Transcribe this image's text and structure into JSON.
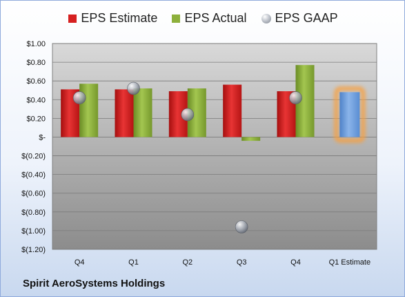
{
  "chart_data": {
    "type": "bar",
    "title": "",
    "xlabel": "",
    "ylabel": "",
    "categories": [
      "Q4",
      "Q1",
      "Q2",
      "Q3",
      "Q4",
      "Q1 Estimate"
    ],
    "series": [
      {
        "name": "EPS Estimate",
        "kind": "bar",
        "color": "#d62020",
        "values": [
          0.51,
          0.51,
          0.49,
          0.56,
          0.49,
          null
        ]
      },
      {
        "name": "EPS Actual",
        "kind": "bar",
        "color": "#8db03c",
        "values": [
          0.57,
          0.52,
          0.52,
          -0.04,
          0.77,
          null
        ]
      },
      {
        "name": "EPS GAAP",
        "kind": "scatter",
        "color": "#a8aeb8",
        "values": [
          0.42,
          0.52,
          0.24,
          -0.96,
          0.42,
          null
        ]
      },
      {
        "name": "",
        "kind": "bar",
        "color": "#6f9fdc",
        "highlight": "#f8a040",
        "values": [
          null,
          null,
          null,
          null,
          null,
          0.48
        ]
      }
    ],
    "ylim": [
      -1.2,
      1.0
    ],
    "yticks": [
      1.0,
      0.8,
      0.6,
      0.4,
      0.2,
      0,
      -0.2,
      -0.4,
      -0.6,
      -0.8,
      -1.0,
      -1.2
    ],
    "ytick_labels": [
      "$1.00",
      "$0.80",
      "$0.60",
      "$0.40",
      "$0.20",
      "$-",
      "$(0.20)",
      "$(0.40)",
      "$(0.60)",
      "$(0.80)",
      "$(1.00)",
      "$(1.20)"
    ],
    "grid": true,
    "legend": "top"
  },
  "legend": {
    "estimate": "EPS Estimate",
    "actual": "EPS Actual",
    "gaap": "EPS GAAP"
  },
  "footer": {
    "company": "Spirit AeroSystems Holdings"
  }
}
